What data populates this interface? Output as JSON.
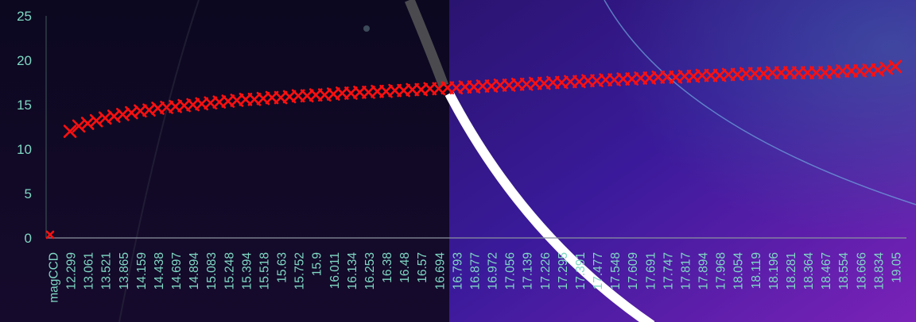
{
  "chart_data": {
    "type": "scatter",
    "marker": "x",
    "marker_color": "#ff1010",
    "axis_text_color": "#7fd8c4",
    "ylim": [
      0,
      25
    ],
    "yticks": [
      "0",
      "5",
      "10",
      "15",
      "20",
      "25"
    ],
    "x_tick_labels": [
      "magCCD",
      "12.299",
      "13.061",
      "13.521",
      "13.865",
      "14.159",
      "14.438",
      "14.697",
      "14.894",
      "15.083",
      "15.248",
      "15.394",
      "15.518",
      "15.63",
      "15.752",
      "15.9",
      "16.011",
      "16.134",
      "16.253",
      "16.38",
      "16.48",
      "16.57",
      "16.694",
      "16.793",
      "16.877",
      "16.972",
      "17.056",
      "17.139",
      "17.226",
      "17.295",
      "17.391",
      "17.477",
      "17.548",
      "17.609",
      "17.691",
      "17.747",
      "17.817",
      "17.894",
      "17.968",
      "18.054",
      "18.119",
      "18.196",
      "18.281",
      "18.364",
      "18.467",
      "18.554",
      "18.666",
      "18.834",
      "19.05"
    ],
    "grid": false,
    "legend": "none",
    "series": [
      {
        "x_start_category": 1,
        "x_end_category": 48,
        "y_points": [
          [
            1,
            12.0
          ],
          [
            1.5,
            12.6
          ],
          [
            2,
            12.9
          ],
          [
            2.5,
            13.2
          ],
          [
            3,
            13.5
          ],
          [
            3.5,
            13.7
          ],
          [
            4,
            13.9
          ],
          [
            4.5,
            14.1
          ],
          [
            5,
            14.3
          ],
          [
            5.5,
            14.4
          ],
          [
            6,
            14.6
          ],
          [
            6.5,
            14.7
          ],
          [
            7,
            14.8
          ],
          [
            7.5,
            14.9
          ],
          [
            8,
            15.0
          ],
          [
            8.5,
            15.1
          ],
          [
            9,
            15.2
          ],
          [
            9.5,
            15.3
          ],
          [
            10,
            15.4
          ],
          [
            10.5,
            15.5
          ],
          [
            11,
            15.6
          ],
          [
            11.5,
            15.6
          ],
          [
            12,
            15.7
          ],
          [
            12.5,
            15.8
          ],
          [
            13,
            15.8
          ],
          [
            13.5,
            15.9
          ],
          [
            14,
            16.0
          ],
          [
            14.5,
            16.0
          ],
          [
            15,
            16.1
          ],
          [
            15.5,
            16.1
          ],
          [
            16,
            16.2
          ],
          [
            16.5,
            16.3
          ],
          [
            17,
            16.3
          ],
          [
            17.5,
            16.4
          ],
          [
            18,
            16.4
          ],
          [
            18.5,
            16.5
          ],
          [
            19,
            16.5
          ],
          [
            19.5,
            16.6
          ],
          [
            20,
            16.6
          ],
          [
            20.5,
            16.7
          ],
          [
            21,
            16.7
          ],
          [
            21.5,
            16.8
          ],
          [
            22,
            16.8
          ],
          [
            22.5,
            16.9
          ],
          [
            23,
            16.9
          ],
          [
            23.5,
            17.0
          ],
          [
            24,
            17.0
          ],
          [
            24.5,
            17.1
          ],
          [
            25,
            17.1
          ],
          [
            25.5,
            17.2
          ],
          [
            26,
            17.2
          ],
          [
            26.5,
            17.3
          ],
          [
            27,
            17.3
          ],
          [
            27.5,
            17.4
          ],
          [
            28,
            17.4
          ],
          [
            28.5,
            17.5
          ],
          [
            29,
            17.5
          ],
          [
            29.5,
            17.6
          ],
          [
            30,
            17.6
          ],
          [
            30.5,
            17.7
          ],
          [
            31,
            17.7
          ],
          [
            31.5,
            17.8
          ],
          [
            32,
            17.8
          ],
          [
            32.5,
            17.9
          ],
          [
            33,
            17.9
          ],
          [
            33.5,
            18.0
          ],
          [
            34,
            18.0
          ],
          [
            34.5,
            18.1
          ],
          [
            35,
            18.1
          ],
          [
            35.5,
            18.1
          ],
          [
            36,
            18.2
          ],
          [
            36.5,
            18.2
          ],
          [
            37,
            18.3
          ],
          [
            37.5,
            18.3
          ],
          [
            38,
            18.3
          ],
          [
            38.5,
            18.4
          ],
          [
            39,
            18.4
          ],
          [
            39.5,
            18.5
          ],
          [
            40,
            18.5
          ],
          [
            40.5,
            18.5
          ],
          [
            41,
            18.6
          ],
          [
            41.5,
            18.6
          ],
          [
            42,
            18.6
          ],
          [
            42.5,
            18.6
          ],
          [
            43,
            18.6
          ],
          [
            43.5,
            18.6
          ],
          [
            44,
            18.6
          ],
          [
            44.5,
            18.7
          ],
          [
            45,
            18.8
          ],
          [
            45.5,
            18.8
          ],
          [
            46,
            18.8
          ],
          [
            46.5,
            18.9
          ],
          [
            47,
            18.9
          ],
          [
            47.5,
            19.1
          ],
          [
            48,
            19.3
          ]
        ]
      }
    ],
    "origin_point": [
      0,
      0
    ]
  }
}
